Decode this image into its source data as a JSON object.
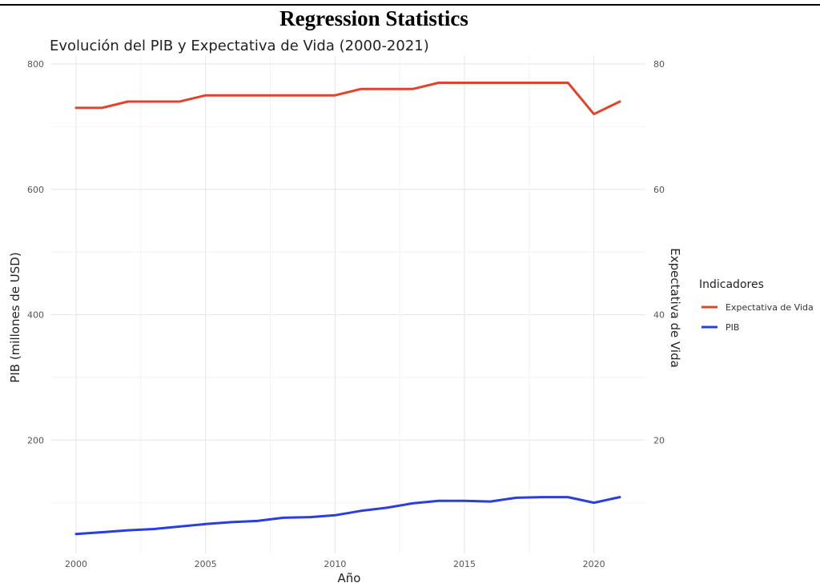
{
  "page": {
    "heading": "Regression Statistics"
  },
  "colors": {
    "expectativa": "#e0442a",
    "pib": "#2a3de0",
    "grid": "#e6e6e6"
  },
  "chart_data": {
    "type": "line",
    "title": "Evolución del PIB y Expectativa de Vida (2000-2021)",
    "xlabel": "Año",
    "ylabel": "PIB (millones de USD)",
    "y2label": "Expectativa de Vida",
    "xlim": [
      2000,
      2021
    ],
    "ylim": [
      0,
      800
    ],
    "y2lim": [
      0,
      80
    ],
    "x_ticks": [
      2000,
      2005,
      2010,
      2015,
      2020
    ],
    "y_ticks": [
      200,
      400,
      600,
      800
    ],
    "y2_ticks": [
      20,
      40,
      60,
      80
    ],
    "grid": true,
    "legend": {
      "title": "Indicadores",
      "position": "right"
    },
    "x": [
      2000,
      2001,
      2002,
      2003,
      2004,
      2005,
      2006,
      2007,
      2008,
      2009,
      2010,
      2011,
      2012,
      2013,
      2014,
      2015,
      2016,
      2017,
      2018,
      2019,
      2020,
      2021
    ],
    "series": [
      {
        "name": "Expectativa de Vida",
        "axis": "right",
        "color": "#e0442a",
        "values": [
          73,
          73,
          74,
          74,
          74,
          75,
          75,
          75,
          75,
          75,
          75,
          76,
          76,
          76,
          77,
          77,
          77,
          77,
          77,
          77,
          72,
          74
        ]
      },
      {
        "name": "PIB",
        "axis": "left",
        "color": "#2a3de0",
        "values": [
          50,
          53,
          56,
          58,
          62,
          66,
          69,
          71,
          76,
          77,
          80,
          87,
          92,
          99,
          103,
          103,
          102,
          108,
          109,
          109,
          100,
          109
        ]
      }
    ]
  }
}
